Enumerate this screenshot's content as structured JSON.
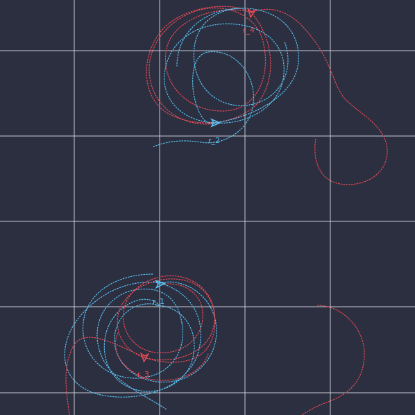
{
  "colors": {
    "background": "#2b2f40",
    "grid": "#d9dbe4",
    "team_red": "#e84a55",
    "team_blue": "#5cc3f3"
  },
  "robots": [
    {
      "id": "r_1",
      "label": "r_1",
      "team": "blue",
      "icon": "arrow-robot-icon"
    },
    {
      "id": "r_2",
      "label": "r_2",
      "team": "blue",
      "icon": "arrow-robot-icon"
    },
    {
      "id": "r_3",
      "label": "r_3",
      "team": "red",
      "icon": "arrow-robot-icon"
    },
    {
      "id": "r_4",
      "label": "r_4",
      "team": "red",
      "icon": "arrow-robot-icon"
    }
  ]
}
